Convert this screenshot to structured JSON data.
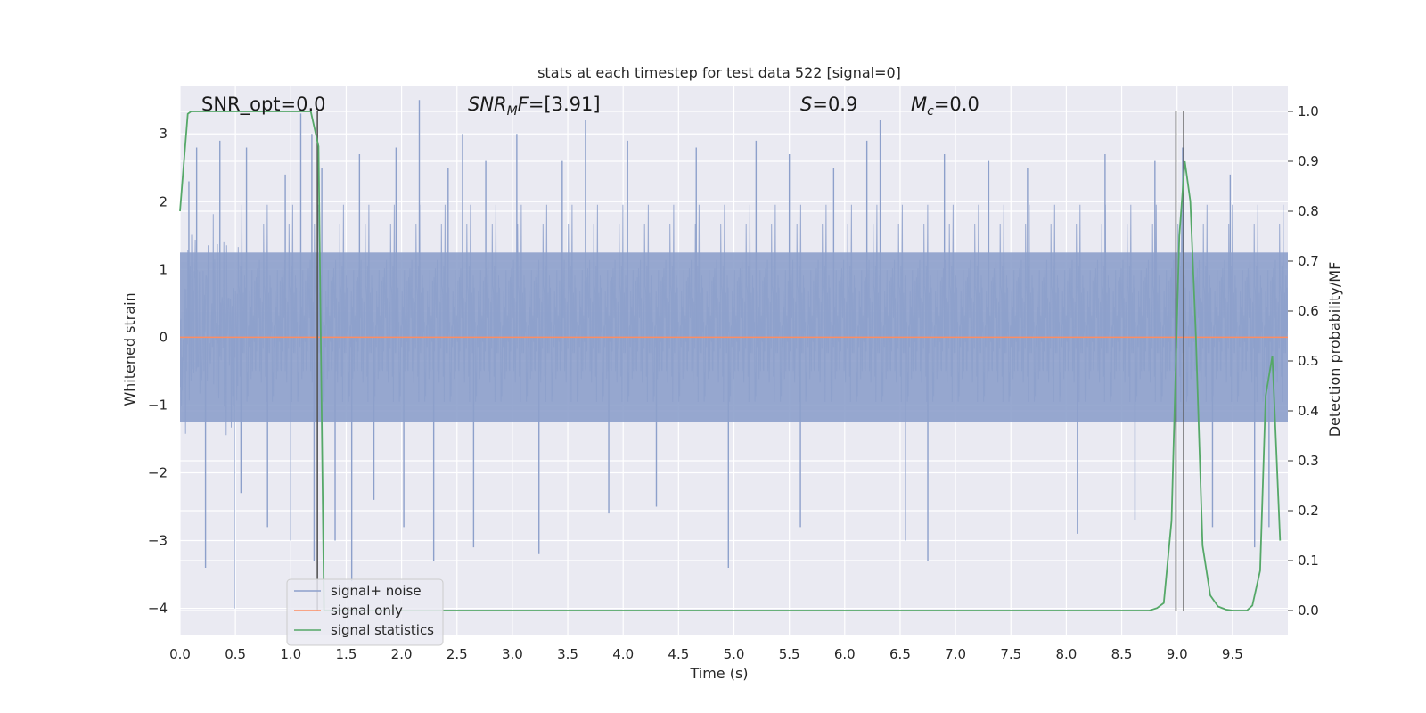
{
  "chart_data": {
    "type": "line",
    "title": "stats at each timestep for test data 522 [signal=0]",
    "xlabel": "Time (s)",
    "ylabel": "Whitened strain",
    "y2label": "Detection probability/MF",
    "xlim": [
      0,
      10
    ],
    "ylim": [
      -4.4,
      3.7
    ],
    "y2lim": [
      -0.05,
      1.05
    ],
    "grid": true,
    "legend_position": "lower-left",
    "x_ticks": [
      "0.0",
      "0.5",
      "1.0",
      "1.5",
      "2.0",
      "2.5",
      "3.0",
      "3.5",
      "4.0",
      "4.5",
      "5.0",
      "5.5",
      "6.0",
      "6.5",
      "7.0",
      "7.5",
      "8.0",
      "8.5",
      "9.0",
      "9.5"
    ],
    "y_ticks": [
      "3",
      "2",
      "1",
      "0",
      "−1",
      "−2",
      "−3",
      "−4"
    ],
    "y2_ticks": [
      "1.0",
      "0.9",
      "0.8",
      "0.7",
      "0.6",
      "0.5",
      "0.4",
      "0.3",
      "0.2",
      "0.1",
      "0.0"
    ],
    "annotations": {
      "snr_opt": "SNR_opt=0.0",
      "snr_mf_prefix": "SNR",
      "snr_mf_sub": "M",
      "snr_mf_suffix": "F=[3.91]",
      "s_prefix": "S",
      "s_suffix": "=0.9",
      "mc_prefix": "M",
      "mc_sub": "c",
      "mc_suffix": "=0.0"
    },
    "series": [
      {
        "name": "signal+ noise",
        "color": "#8da0cb",
        "description_values": "dense white-noise band, mostly within [-1.8, 1.8] with spikes reaching about 3.5 and -4.0",
        "spikes": [
          [
            0.08,
            2.3
          ],
          [
            0.15,
            2.8
          ],
          [
            0.23,
            -3.4
          ],
          [
            0.36,
            2.9
          ],
          [
            0.49,
            -4.0
          ],
          [
            0.55,
            -2.3
          ],
          [
            0.6,
            2.8
          ],
          [
            0.79,
            -2.8
          ],
          [
            0.95,
            2.4
          ],
          [
            1.0,
            -3.0
          ],
          [
            1.09,
            3.3
          ],
          [
            1.19,
            3.0
          ],
          [
            1.21,
            -3.3
          ],
          [
            1.28,
            2.5
          ],
          [
            1.4,
            -3.0
          ],
          [
            1.55,
            -3.6
          ],
          [
            1.62,
            2.7
          ],
          [
            1.75,
            -2.4
          ],
          [
            1.95,
            2.8
          ],
          [
            2.02,
            -2.8
          ],
          [
            2.16,
            3.5
          ],
          [
            2.29,
            -3.3
          ],
          [
            2.42,
            2.5
          ],
          [
            2.55,
            3.0
          ],
          [
            2.65,
            -3.1
          ],
          [
            2.76,
            2.6
          ],
          [
            3.04,
            3.0
          ],
          [
            3.24,
            -3.2
          ],
          [
            3.45,
            2.6
          ],
          [
            3.66,
            3.2
          ],
          [
            3.87,
            -2.6
          ],
          [
            4.04,
            2.9
          ],
          [
            4.3,
            -2.5
          ],
          [
            4.66,
            2.8
          ],
          [
            4.95,
            -3.4
          ],
          [
            5.2,
            2.9
          ],
          [
            5.5,
            2.7
          ],
          [
            5.6,
            -2.8
          ],
          [
            5.9,
            2.5
          ],
          [
            6.2,
            2.9
          ],
          [
            6.32,
            3.2
          ],
          [
            6.55,
            -3.0
          ],
          [
            6.75,
            -3.3
          ],
          [
            6.9,
            2.7
          ],
          [
            7.3,
            2.6
          ],
          [
            7.65,
            2.5
          ],
          [
            8.1,
            -2.9
          ],
          [
            8.35,
            2.7
          ],
          [
            8.62,
            -2.7
          ],
          [
            8.8,
            2.6
          ],
          [
            9.05,
            2.8
          ],
          [
            9.32,
            -2.8
          ],
          [
            9.48,
            2.4
          ],
          [
            9.7,
            -3.1
          ],
          [
            9.83,
            -2.8
          ]
        ]
      },
      {
        "name": "signal only",
        "color": "#fc8d62",
        "x": [
          0,
          10
        ],
        "y": [
          0,
          0
        ]
      },
      {
        "name": "signal statistics",
        "color": "#55a868",
        "axis": "right",
        "x": [
          0.0,
          0.07,
          0.1,
          0.2,
          0.3,
          0.5,
          0.7,
          0.9,
          1.1,
          1.18,
          1.25,
          1.3,
          1.35,
          1.4,
          1.5,
          2.0,
          3.0,
          4.0,
          5.0,
          6.0,
          7.0,
          8.0,
          8.5,
          8.75,
          8.82,
          8.88,
          8.95,
          9.02,
          9.07,
          9.12,
          9.17,
          9.23,
          9.3,
          9.37,
          9.44,
          9.5,
          9.57,
          9.63,
          9.68,
          9.75,
          9.8,
          9.86,
          9.93
        ],
        "y": [
          0.8,
          0.995,
          1.0,
          1.0,
          1.0,
          1.0,
          1.0,
          1.0,
          1.0,
          1.0,
          0.93,
          0.0,
          0.0,
          0.0,
          0.0,
          0.0,
          0.0,
          0.0,
          0.0,
          0.0,
          0.0,
          0.0,
          0.0,
          0.0,
          0.005,
          0.015,
          0.18,
          0.75,
          0.9,
          0.82,
          0.55,
          0.13,
          0.03,
          0.008,
          0.002,
          0.0,
          0.0,
          0.0,
          0.01,
          0.08,
          0.43,
          0.51,
          0.14
        ]
      }
    ],
    "vertical_lines": [
      1.24,
      8.99,
      9.06
    ],
    "vertical_line_color": "#555555"
  }
}
